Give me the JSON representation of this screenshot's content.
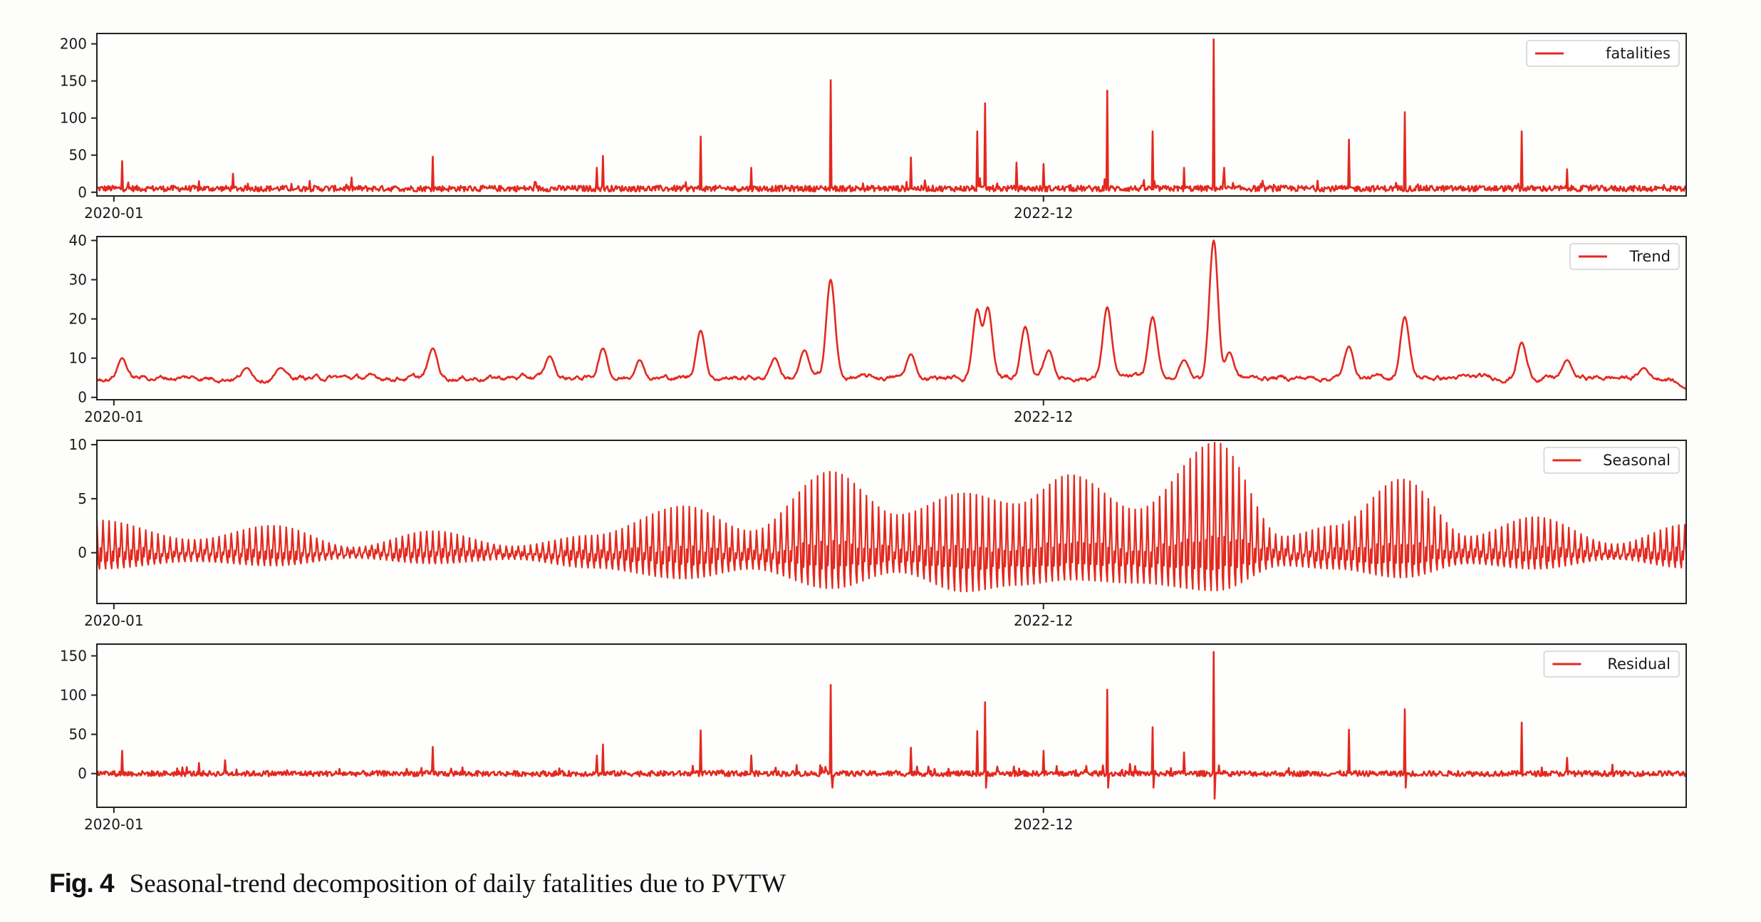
{
  "figure": {
    "caption_label": "Fig. 4",
    "caption_text": "Seasonal-trend decomposition of daily fatalities due to PVTW",
    "line_color": "#e3291f"
  },
  "chart_data": [
    {
      "type": "line",
      "series_name": "fatalities",
      "legend": "fatalities",
      "legend_position": "top-right",
      "x_unit": "months since 2020-01",
      "xlim": [
        -0.64,
        59.2
      ],
      "xticks": [
        {
          "value": 0,
          "label": "2020-01"
        },
        {
          "value": 35,
          "label": "2022-12"
        }
      ],
      "ylim": [
        -5,
        214
      ],
      "yticks": [
        {
          "value": 0,
          "label": "0"
        },
        {
          "value": 50,
          "label": "50"
        },
        {
          "value": 100,
          "label": "100"
        },
        {
          "value": 150,
          "label": "150"
        },
        {
          "value": 200,
          "label": "200"
        }
      ],
      "baseline": {
        "mean": 5,
        "noise": 4
      },
      "peaks": [
        {
          "x": 0.3,
          "y": 42
        },
        {
          "x": 4.5,
          "y": 25
        },
        {
          "x": 12.0,
          "y": 48
        },
        {
          "x": 18.2,
          "y": 33
        },
        {
          "x": 18.4,
          "y": 49
        },
        {
          "x": 22.1,
          "y": 75
        },
        {
          "x": 24.0,
          "y": 33
        },
        {
          "x": 27.0,
          "y": 151
        },
        {
          "x": 30.0,
          "y": 47
        },
        {
          "x": 32.5,
          "y": 82
        },
        {
          "x": 32.8,
          "y": 120
        },
        {
          "x": 34.0,
          "y": 40
        },
        {
          "x": 35.0,
          "y": 38
        },
        {
          "x": 37.4,
          "y": 137
        },
        {
          "x": 39.1,
          "y": 82
        },
        {
          "x": 40.3,
          "y": 33
        },
        {
          "x": 41.4,
          "y": 206
        },
        {
          "x": 41.8,
          "y": 33
        },
        {
          "x": 46.5,
          "y": 71
        },
        {
          "x": 48.6,
          "y": 108
        },
        {
          "x": 53.0,
          "y": 82
        },
        {
          "x": 54.7,
          "y": 31
        }
      ]
    },
    {
      "type": "line",
      "series_name": "Trend",
      "legend": "Trend",
      "legend_position": "top-right",
      "x_unit": "months since 2020-01",
      "xlim": [
        -0.64,
        59.2
      ],
      "xticks": [
        {
          "value": 0,
          "label": "2020-01"
        },
        {
          "value": 35,
          "label": "2022-12"
        }
      ],
      "ylim": [
        -0.6,
        41
      ],
      "yticks": [
        {
          "value": 0,
          "label": "0"
        },
        {
          "value": 10,
          "label": "10"
        },
        {
          "value": 20,
          "label": "20"
        },
        {
          "value": 30,
          "label": "30"
        },
        {
          "value": 40,
          "label": "40"
        }
      ],
      "baseline": {
        "mean": 5,
        "noise": 1.6
      },
      "peaks": [
        {
          "x": 0.3,
          "y": 10
        },
        {
          "x": 5.0,
          "y": 7.5
        },
        {
          "x": 6.3,
          "y": 7.5
        },
        {
          "x": 12.0,
          "y": 12.5
        },
        {
          "x": 16.4,
          "y": 10.5
        },
        {
          "x": 18.4,
          "y": 12.5
        },
        {
          "x": 19.8,
          "y": 9.5
        },
        {
          "x": 22.1,
          "y": 17
        },
        {
          "x": 24.9,
          "y": 10
        },
        {
          "x": 26.0,
          "y": 12
        },
        {
          "x": 27.0,
          "y": 30
        },
        {
          "x": 30.0,
          "y": 11
        },
        {
          "x": 32.5,
          "y": 22.5
        },
        {
          "x": 32.9,
          "y": 23
        },
        {
          "x": 34.3,
          "y": 18
        },
        {
          "x": 35.2,
          "y": 12
        },
        {
          "x": 37.4,
          "y": 23
        },
        {
          "x": 39.1,
          "y": 20.5
        },
        {
          "x": 40.3,
          "y": 9.5
        },
        {
          "x": 41.4,
          "y": 40
        },
        {
          "x": 42.0,
          "y": 11.5
        },
        {
          "x": 46.5,
          "y": 13
        },
        {
          "x": 48.6,
          "y": 20.5
        },
        {
          "x": 53.0,
          "y": 14
        },
        {
          "x": 54.7,
          "y": 9.5
        },
        {
          "x": 57.6,
          "y": 7.5
        }
      ],
      "end_value": 2
    },
    {
      "type": "line",
      "series_name": "Seasonal",
      "legend": "Seasonal",
      "legend_position": "top-right",
      "x_unit": "months since 2020-01",
      "xlim": [
        -0.64,
        59.2
      ],
      "xticks": [
        {
          "value": 0,
          "label": "2020-01"
        },
        {
          "value": 35,
          "label": "2022-12"
        }
      ],
      "ylim": [
        -4.7,
        10.4
      ],
      "yticks": [
        {
          "value": 0,
          "label": "0"
        },
        {
          "value": 5,
          "label": "5"
        },
        {
          "value": 10,
          "label": "10"
        }
      ],
      "period_days": 7,
      "envelope": [
        {
          "x": -0.6,
          "upper": 3.0,
          "lower": -1.5
        },
        {
          "x": 3.0,
          "upper": 1.2,
          "lower": -0.8
        },
        {
          "x": 6.0,
          "upper": 2.5,
          "lower": -1.2
        },
        {
          "x": 9.0,
          "upper": 0.5,
          "lower": -0.5
        },
        {
          "x": 12.0,
          "upper": 2.0,
          "lower": -1.0
        },
        {
          "x": 15.0,
          "upper": 0.6,
          "lower": -0.6
        },
        {
          "x": 18.0,
          "upper": 1.6,
          "lower": -1.4
        },
        {
          "x": 21.5,
          "upper": 4.3,
          "lower": -2.4
        },
        {
          "x": 24.0,
          "upper": 2.0,
          "lower": -1.5
        },
        {
          "x": 27.0,
          "upper": 7.5,
          "lower": -3.3
        },
        {
          "x": 29.5,
          "upper": 3.5,
          "lower": -1.8
        },
        {
          "x": 32.0,
          "upper": 5.5,
          "lower": -3.6
        },
        {
          "x": 34.0,
          "upper": 4.5,
          "lower": -3.0
        },
        {
          "x": 36.0,
          "upper": 7.2,
          "lower": -2.5
        },
        {
          "x": 38.5,
          "upper": 4.0,
          "lower": -2.8
        },
        {
          "x": 41.5,
          "upper": 10.2,
          "lower": -3.5
        },
        {
          "x": 44.0,
          "upper": 1.5,
          "lower": -1.2
        },
        {
          "x": 46.0,
          "upper": 2.5,
          "lower": -1.5
        },
        {
          "x": 48.5,
          "upper": 6.8,
          "lower": -2.3
        },
        {
          "x": 51.0,
          "upper": 1.5,
          "lower": -1.0
        },
        {
          "x": 53.5,
          "upper": 3.3,
          "lower": -1.5
        },
        {
          "x": 56.5,
          "upper": 0.8,
          "lower": -0.6
        },
        {
          "x": 59.2,
          "upper": 2.6,
          "lower": -1.4
        }
      ]
    },
    {
      "type": "line",
      "series_name": "Residual",
      "legend": "Residual",
      "legend_position": "top-right",
      "x_unit": "months since 2020-01",
      "xlim": [
        -0.64,
        59.2
      ],
      "xticks": [
        {
          "value": 0,
          "label": "2020-01"
        },
        {
          "value": 35,
          "label": "2022-12"
        }
      ],
      "ylim": [
        -43,
        165
      ],
      "yticks": [
        {
          "value": 0,
          "label": "0"
        },
        {
          "value": 50,
          "label": "50"
        },
        {
          "value": 100,
          "label": "100"
        },
        {
          "value": 150,
          "label": "150"
        }
      ],
      "baseline": {
        "mean": 0,
        "noise": 3.5
      },
      "peaks": [
        {
          "x": 0.3,
          "y": 29
        },
        {
          "x": 4.2,
          "y": 17
        },
        {
          "x": 12.0,
          "y": 34
        },
        {
          "x": 18.2,
          "y": 23
        },
        {
          "x": 18.4,
          "y": 37
        },
        {
          "x": 22.1,
          "y": 55
        },
        {
          "x": 24.0,
          "y": 23
        },
        {
          "x": 27.0,
          "y": 113
        },
        {
          "x": 27.05,
          "y": -18
        },
        {
          "x": 30.0,
          "y": 33
        },
        {
          "x": 32.5,
          "y": 54
        },
        {
          "x": 32.8,
          "y": 91
        },
        {
          "x": 32.85,
          "y": -18
        },
        {
          "x": 35.0,
          "y": 29
        },
        {
          "x": 37.4,
          "y": 107
        },
        {
          "x": 37.45,
          "y": -18
        },
        {
          "x": 39.1,
          "y": 59
        },
        {
          "x": 39.15,
          "y": -18
        },
        {
          "x": 40.3,
          "y": 27
        },
        {
          "x": 41.4,
          "y": 155
        },
        {
          "x": 41.45,
          "y": -32
        },
        {
          "x": 46.5,
          "y": 56
        },
        {
          "x": 48.6,
          "y": 82
        },
        {
          "x": 48.65,
          "y": -18
        },
        {
          "x": 53.0,
          "y": 65
        },
        {
          "x": 54.7,
          "y": 20
        }
      ]
    }
  ]
}
